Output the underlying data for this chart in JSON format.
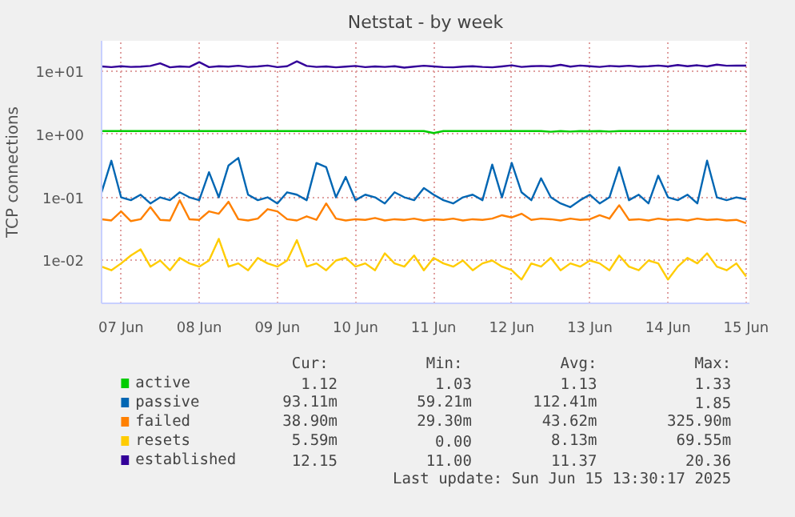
{
  "chart_data": {
    "type": "line",
    "title": "Netstat - by week",
    "ylabel": "TCP connections",
    "log": true,
    "grid": true,
    "legend": "bottom",
    "xlim": [
      "2025-06-07T06:00",
      "2025-06-15T13:00"
    ],
    "ylim": [
      0.0021,
      30
    ],
    "xticks": [
      {
        "value": "2025-06-07T12:00",
        "label": "07 Jun"
      },
      {
        "value": "2025-06-08T12:00",
        "label": "08 Jun"
      },
      {
        "value": "2025-06-09T12:00",
        "label": "09 Jun"
      },
      {
        "value": "2025-06-10T12:00",
        "label": "10 Jun"
      },
      {
        "value": "2025-06-11T12:00",
        "label": "11 Jun"
      },
      {
        "value": "2025-06-12T12:00",
        "label": "12 Jun"
      },
      {
        "value": "2025-06-13T12:00",
        "label": "13 Jun"
      },
      {
        "value": "2025-06-14T12:00",
        "label": "14 Jun"
      },
      {
        "value": "2025-06-15T12:00",
        "label": "15 Jun"
      }
    ],
    "yticks": [
      {
        "value": 0.01,
        "label": "1e-02"
      },
      {
        "value": 0.1,
        "label": "1e-01"
      },
      {
        "value": 1,
        "label": "1e+00"
      },
      {
        "value": 10,
        "label": "1e+01"
      }
    ],
    "x": [
      "2025-06-07T06:00",
      "2025-06-07T09:00",
      "2025-06-07T12:00",
      "2025-06-07T15:00",
      "2025-06-07T18:00",
      "2025-06-07T21:00",
      "2025-06-08T00:00",
      "2025-06-08T03:00",
      "2025-06-08T06:00",
      "2025-06-08T09:00",
      "2025-06-08T12:00",
      "2025-06-08T15:00",
      "2025-06-08T18:00",
      "2025-06-08T21:00",
      "2025-06-09T00:00",
      "2025-06-09T03:00",
      "2025-06-09T06:00",
      "2025-06-09T09:00",
      "2025-06-09T12:00",
      "2025-06-09T15:00",
      "2025-06-09T18:00",
      "2025-06-09T21:00",
      "2025-06-10T00:00",
      "2025-06-10T03:00",
      "2025-06-10T06:00",
      "2025-06-10T09:00",
      "2025-06-10T12:00",
      "2025-06-10T15:00",
      "2025-06-10T18:00",
      "2025-06-10T21:00",
      "2025-06-11T00:00",
      "2025-06-11T03:00",
      "2025-06-11T06:00",
      "2025-06-11T09:00",
      "2025-06-11T12:00",
      "2025-06-11T15:00",
      "2025-06-11T18:00",
      "2025-06-11T21:00",
      "2025-06-12T00:00",
      "2025-06-12T03:00",
      "2025-06-12T06:00",
      "2025-06-12T09:00",
      "2025-06-12T12:00",
      "2025-06-12T15:00",
      "2025-06-12T18:00",
      "2025-06-12T21:00",
      "2025-06-13T00:00",
      "2025-06-13T03:00",
      "2025-06-13T06:00",
      "2025-06-13T09:00",
      "2025-06-13T12:00",
      "2025-06-13T15:00",
      "2025-06-13T18:00",
      "2025-06-13T21:00",
      "2025-06-14T00:00",
      "2025-06-14T03:00",
      "2025-06-14T06:00",
      "2025-06-14T09:00",
      "2025-06-14T12:00",
      "2025-06-14T15:00",
      "2025-06-14T18:00",
      "2025-06-14T21:00",
      "2025-06-15T00:00",
      "2025-06-15T03:00",
      "2025-06-15T06:00",
      "2025-06-15T09:00",
      "2025-06-15T12:00"
    ],
    "series": [
      {
        "name": "active",
        "color": "#00cc00",
        "values": [
          1.12,
          1.12,
          1.12,
          1.12,
          1.12,
          1.12,
          1.12,
          1.12,
          1.12,
          1.12,
          1.12,
          1.12,
          1.12,
          1.12,
          1.12,
          1.12,
          1.12,
          1.12,
          1.12,
          1.12,
          1.12,
          1.12,
          1.12,
          1.12,
          1.12,
          1.12,
          1.12,
          1.12,
          1.12,
          1.12,
          1.12,
          1.12,
          1.12,
          1.12,
          1.04,
          1.12,
          1.12,
          1.12,
          1.12,
          1.12,
          1.12,
          1.12,
          1.12,
          1.12,
          1.12,
          1.12,
          1.09,
          1.12,
          1.1,
          1.12,
          1.11,
          1.12,
          1.1,
          1.12,
          1.12,
          1.12,
          1.12,
          1.12,
          1.12,
          1.12,
          1.12,
          1.12,
          1.12,
          1.12,
          1.12,
          1.12,
          1.12
        ]
      },
      {
        "name": "passive",
        "color": "#0066b3",
        "values": [
          0.12,
          0.38,
          0.1,
          0.09,
          0.11,
          0.08,
          0.1,
          0.09,
          0.12,
          0.1,
          0.09,
          0.25,
          0.1,
          0.32,
          0.42,
          0.11,
          0.09,
          0.1,
          0.08,
          0.12,
          0.11,
          0.09,
          0.35,
          0.3,
          0.1,
          0.21,
          0.09,
          0.11,
          0.1,
          0.08,
          0.12,
          0.1,
          0.09,
          0.14,
          0.11,
          0.09,
          0.08,
          0.1,
          0.11,
          0.09,
          0.33,
          0.1,
          0.35,
          0.12,
          0.09,
          0.2,
          0.1,
          0.08,
          0.07,
          0.09,
          0.11,
          0.08,
          0.1,
          0.3,
          0.09,
          0.11,
          0.08,
          0.22,
          0.1,
          0.09,
          0.11,
          0.08,
          0.38,
          0.1,
          0.09,
          0.1,
          0.093
        ]
      },
      {
        "name": "failed",
        "color": "#ff8000",
        "values": [
          0.045,
          0.043,
          0.06,
          0.042,
          0.045,
          0.07,
          0.044,
          0.043,
          0.09,
          0.045,
          0.044,
          0.06,
          0.055,
          0.085,
          0.045,
          0.043,
          0.046,
          0.065,
          0.06,
          0.045,
          0.043,
          0.05,
          0.044,
          0.08,
          0.046,
          0.043,
          0.045,
          0.044,
          0.047,
          0.043,
          0.045,
          0.044,
          0.046,
          0.043,
          0.045,
          0.044,
          0.046,
          0.043,
          0.045,
          0.044,
          0.046,
          0.052,
          0.048,
          0.055,
          0.044,
          0.046,
          0.045,
          0.043,
          0.046,
          0.044,
          0.045,
          0.052,
          0.046,
          0.075,
          0.044,
          0.045,
          0.043,
          0.046,
          0.044,
          0.045,
          0.043,
          0.046,
          0.044,
          0.045,
          0.043,
          0.044,
          0.039
        ]
      },
      {
        "name": "resets",
        "color": "#ffcc00",
        "values": [
          0.008,
          0.007,
          0.009,
          0.012,
          0.015,
          0.008,
          0.01,
          0.007,
          0.011,
          0.009,
          0.008,
          0.01,
          0.022,
          0.008,
          0.009,
          0.007,
          0.011,
          0.009,
          0.008,
          0.01,
          0.021,
          0.008,
          0.009,
          0.007,
          0.01,
          0.011,
          0.008,
          0.009,
          0.007,
          0.013,
          0.009,
          0.008,
          0.012,
          0.007,
          0.011,
          0.009,
          0.008,
          0.01,
          0.007,
          0.009,
          0.01,
          0.008,
          0.007,
          0.005,
          0.009,
          0.008,
          0.011,
          0.007,
          0.009,
          0.008,
          0.01,
          0.009,
          0.007,
          0.012,
          0.008,
          0.007,
          0.01,
          0.009,
          0.005,
          0.008,
          0.011,
          0.009,
          0.013,
          0.008,
          0.007,
          0.009,
          0.00559
        ]
      },
      {
        "name": "established",
        "color": "#330099",
        "values": [
          11.8,
          11.5,
          11.9,
          11.6,
          11.7,
          12.0,
          13.2,
          11.4,
          11.8,
          11.6,
          13.8,
          11.5,
          11.9,
          11.7,
          12.1,
          11.6,
          11.8,
          12.2,
          11.5,
          11.9,
          14.2,
          12.0,
          11.6,
          11.8,
          11.4,
          11.7,
          12.0,
          11.5,
          11.8,
          11.6,
          11.9,
          11.3,
          11.7,
          12.1,
          11.8,
          11.5,
          11.4,
          11.7,
          11.9,
          11.6,
          11.4,
          11.8,
          12.3,
          11.6,
          11.9,
          12.0,
          11.8,
          12.5,
          11.7,
          12.2,
          11.9,
          11.6,
          12.0,
          11.8,
          12.1,
          11.7,
          11.9,
          12.2,
          11.8,
          12.4,
          11.9,
          12.3,
          11.8,
          12.6,
          12.1,
          12.2,
          12.15
        ]
      }
    ],
    "annotations": [
      "Cur:",
      "Min:",
      "Avg:",
      "Max:",
      "1.12",
      "1.03",
      "1.13",
      "1.33",
      "93.11m",
      "59.21m",
      "112.41m",
      "1.85",
      "38.90m",
      "29.30m",
      "43.62m",
      "325.90m",
      "5.59m",
      "0.00",
      "8.13m",
      "69.55m",
      "12.15",
      "11.00",
      "11.37",
      "20.36",
      "Last update: Sun Jun 15 13:30:17 2025"
    ]
  }
}
